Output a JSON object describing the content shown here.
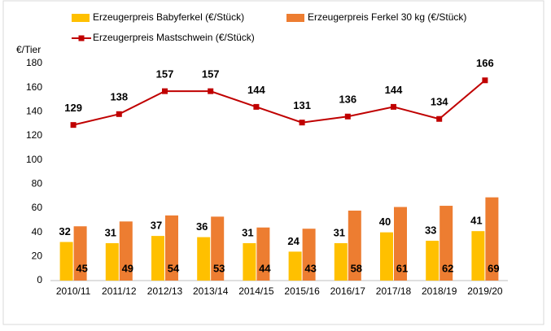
{
  "chart_data": {
    "type": "bar",
    "y_label": "€/Tier",
    "categories": [
      "2010/11",
      "2011/12",
      "2012/13",
      "2013/14",
      "2014/15",
      "2015/16",
      "2016/17",
      "2017/18",
      "2018/19",
      "2019/20"
    ],
    "series": [
      {
        "name": "Erzeugerpreis Babyferkel (€/Stück)",
        "color": "#ffc000",
        "type": "bar",
        "values": [
          32,
          31,
          37,
          36,
          31,
          24,
          31,
          40,
          33,
          41
        ]
      },
      {
        "name": "Erzeugerpreis Ferkel 30 kg (€/Stück)",
        "color": "#ed7d31",
        "type": "bar",
        "values": [
          45,
          49,
          54,
          53,
          44,
          43,
          58,
          61,
          62,
          69
        ]
      },
      {
        "name": "Erzeugerpreis Mastschwein (€/Stück)",
        "color": "#c00000",
        "type": "line",
        "values": [
          129,
          138,
          157,
          157,
          144,
          131,
          136,
          144,
          134,
          166
        ]
      }
    ],
    "ylim": [
      0,
      180
    ],
    "yticks": [
      0,
      20,
      40,
      60,
      80,
      100,
      120,
      140,
      160,
      180
    ],
    "grid": false
  }
}
